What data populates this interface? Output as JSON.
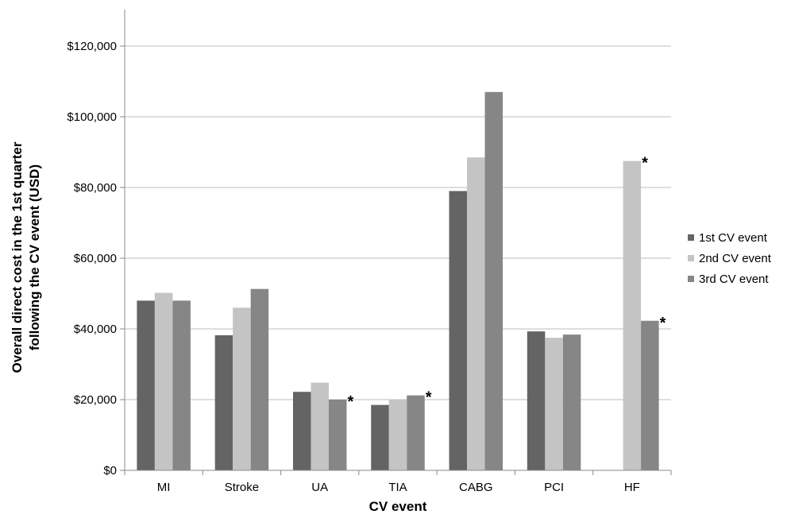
{
  "chart_data": {
    "type": "bar",
    "title": "",
    "xlabel": "CV event",
    "ylabel_lines": [
      "Overall direct cost in the 1st quarter",
      "following the CV event (USD)"
    ],
    "categories": [
      "MI",
      "Stroke",
      "UA",
      "TIA",
      "CABG",
      "PCI",
      "HF"
    ],
    "ylim": [
      0,
      120000
    ],
    "yticks": [
      0,
      20000,
      40000,
      60000,
      80000,
      100000,
      120000
    ],
    "ytick_labels": [
      "$0",
      "$20,000",
      "$40,000",
      "$60,000",
      "$80,000",
      "$100,000",
      "$120,000"
    ],
    "grid": true,
    "legend_position": "right",
    "series": [
      {
        "name": "1st CV event",
        "color": "#646464",
        "values": [
          48000,
          38200,
          22200,
          18500,
          79000,
          39300,
          null
        ]
      },
      {
        "name": "2nd CV event",
        "color": "#c4c4c4",
        "values": [
          50200,
          46000,
          24800,
          20000,
          88500,
          37500,
          87500
        ]
      },
      {
        "name": "3rd CV event",
        "color": "#868686",
        "values": [
          48000,
          51300,
          20000,
          21200,
          107000,
          38400,
          42300
        ]
      }
    ],
    "annotations": [
      {
        "text": "*",
        "category": "UA",
        "series": "3rd CV event"
      },
      {
        "text": "*",
        "category": "TIA",
        "series": "3rd CV event"
      },
      {
        "text": "*",
        "category": "HF",
        "series": "2nd CV event"
      },
      {
        "text": "*",
        "category": "HF",
        "series": "3rd CV event"
      }
    ]
  }
}
